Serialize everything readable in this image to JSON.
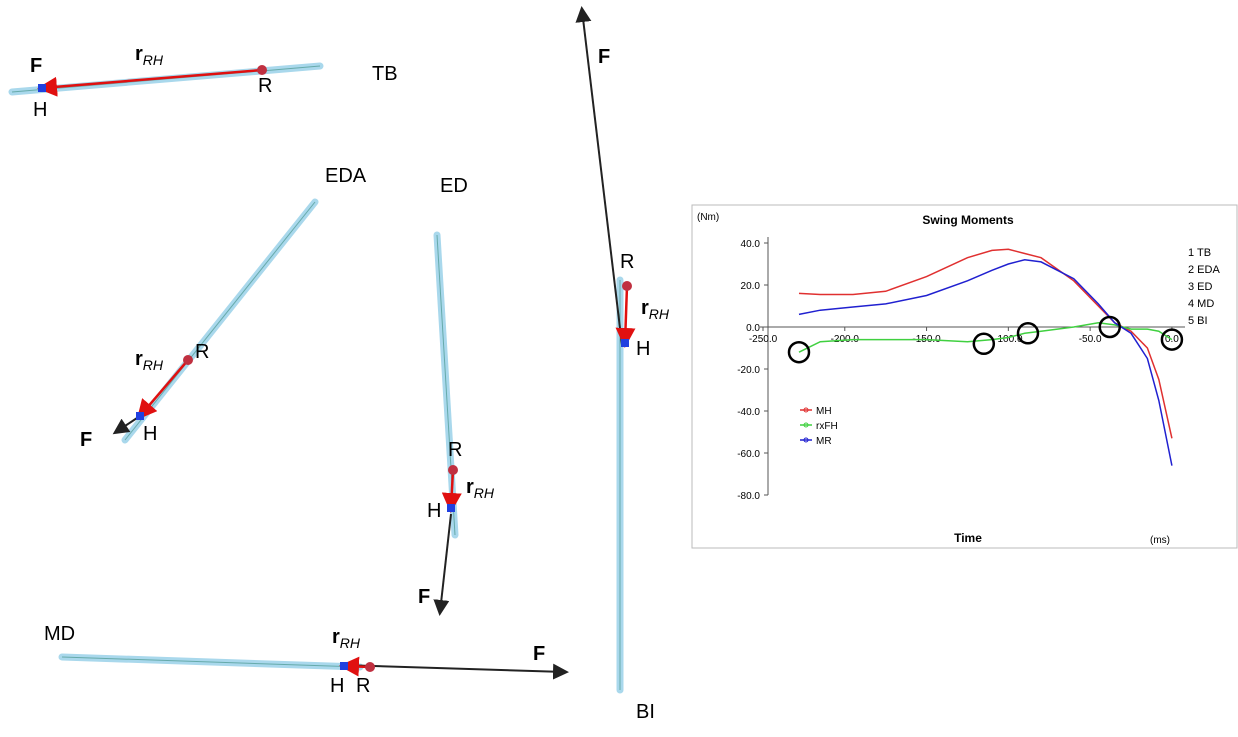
{
  "diagrams": [
    {
      "club": "TB",
      "force": "F",
      "r": "r",
      "sub": "RH",
      "hand": "H",
      "release": "R"
    },
    {
      "club": "EDA",
      "force": "F",
      "r": "r",
      "sub": "RH",
      "hand": "H",
      "release": "R"
    },
    {
      "club": "ED",
      "force": "F",
      "r": "r",
      "sub": "RH",
      "hand": "H",
      "release": "R"
    },
    {
      "club": "MD",
      "force": "F",
      "r": "r",
      "sub": "RH",
      "hand": "H",
      "release": "R"
    },
    {
      "club": "BI",
      "force": "F",
      "r": "r",
      "sub": "RH",
      "hand": "H",
      "release": "R"
    }
  ],
  "chart_data": {
    "type": "line",
    "title": "Swing Moments",
    "y_label": "(Nm)",
    "x_label": "Time",
    "x_unit": "(ms)",
    "x": [
      -228,
      -215,
      -195,
      -175,
      -150,
      -125,
      -110,
      -100,
      -90,
      -80,
      -60,
      -45,
      -35,
      -25,
      -15,
      -8,
      0
    ],
    "series": [
      {
        "name": "MH",
        "color": "#e03030",
        "values": [
          16,
          15.5,
          15.5,
          17,
          24,
          33,
          36.5,
          37,
          35,
          33,
          22,
          10,
          2,
          -2,
          -10,
          -25,
          -53
        ]
      },
      {
        "name": "rxFH",
        "color": "#40d040",
        "values": [
          -12,
          -7,
          -6,
          -6,
          -6,
          -7,
          -6,
          -5,
          -3,
          -2,
          0,
          2,
          1,
          -1,
          -1,
          -2,
          -6
        ]
      },
      {
        "name": "MR",
        "color": "#2020d0",
        "values": [
          6,
          8,
          9.5,
          11,
          15,
          22,
          27,
          30,
          32,
          31,
          23,
          11,
          2,
          -3,
          -15,
          -35,
          -66
        ]
      }
    ],
    "phases": [
      {
        "label": "1 TB",
        "x": -228,
        "y": -12
      },
      {
        "label": "2 EDA",
        "x": -115,
        "y": -8
      },
      {
        "label": "3 ED",
        "x": -88,
        "y": -3
      },
      {
        "label": "4 MD",
        "x": -38,
        "y": 0
      },
      {
        "label": "5 BI",
        "x": 0,
        "y": -6
      }
    ],
    "xlim": [
      -250,
      8
    ],
    "ylim": [
      -80,
      40
    ],
    "xticks": [
      {
        "value": -250,
        "label": "-250.0"
      },
      {
        "value": -200,
        "label": "-200.0"
      },
      {
        "value": -150,
        "label": "-150.0"
      },
      {
        "value": -100,
        "label": "-100.0"
      },
      {
        "value": -50,
        "label": "-50.0"
      },
      {
        "value": 0,
        "label": "0.0"
      }
    ],
    "yticks": [
      {
        "value": 40,
        "label": "40.0"
      },
      {
        "value": 20,
        "label": "20.0"
      },
      {
        "value": 0,
        "label": "0.0"
      },
      {
        "value": -20,
        "label": "-20.0"
      },
      {
        "value": -40,
        "label": "-40.0"
      },
      {
        "value": -60,
        "label": "-60.0"
      },
      {
        "value": -80,
        "label": "-80.0"
      }
    ]
  }
}
